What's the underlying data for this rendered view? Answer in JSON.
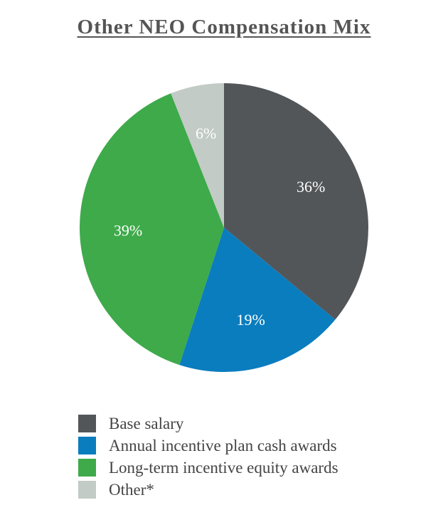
{
  "chart_data": {
    "type": "pie",
    "title": "Other NEO Compensation Mix",
    "slices": [
      {
        "label": "Base salary",
        "value": 36,
        "display": "36%",
        "color": "#535659"
      },
      {
        "label": "Annual incentive plan cash awards",
        "value": 19,
        "display": "19%",
        "color": "#0A7DBE"
      },
      {
        "label": "Long-term incentive equity awards",
        "value": 39,
        "display": "39%",
        "color": "#3EAA4A"
      },
      {
        "label": "Other*",
        "value": 6,
        "display": "6%",
        "color": "#C2CBC6"
      }
    ],
    "legend_position": "bottom"
  }
}
